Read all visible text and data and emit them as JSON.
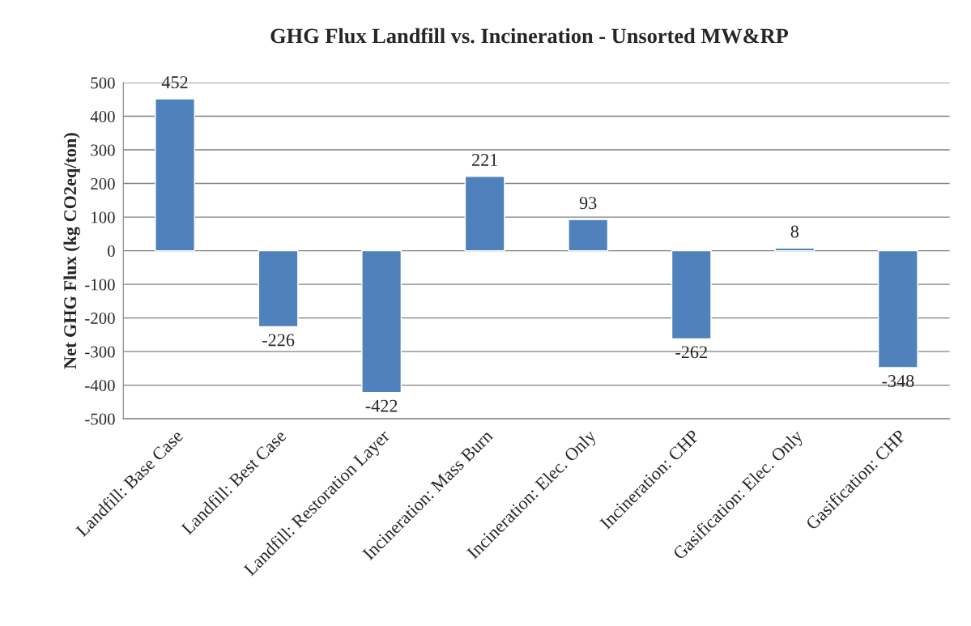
{
  "chart_data": {
    "type": "bar",
    "title": "GHG Flux Landfill vs. Incineration - Unsorted MW&RP",
    "ylabel": "Net GHG Flux (kg CO2eq/ton)",
    "categories": [
      "Landfill: Base Case",
      "Landfill: Best Case",
      "Landfill: Restoration Layer",
      "Incineration: Mass Burn",
      "Incineration: Elec. Only",
      "Incineration: CHP",
      "Gasification: Elec. Only",
      "Gasification: CHP"
    ],
    "values": [
      452,
      -226,
      -422,
      221,
      93,
      -262,
      8,
      -348
    ],
    "color": "#4f81bd",
    "ylim": [
      -500,
      500
    ],
    "yticks": [
      -500,
      -400,
      -300,
      -200,
      -100,
      0,
      100,
      200,
      300,
      400,
      500
    ],
    "grid": "y",
    "data_labels": true,
    "legend": false
  }
}
